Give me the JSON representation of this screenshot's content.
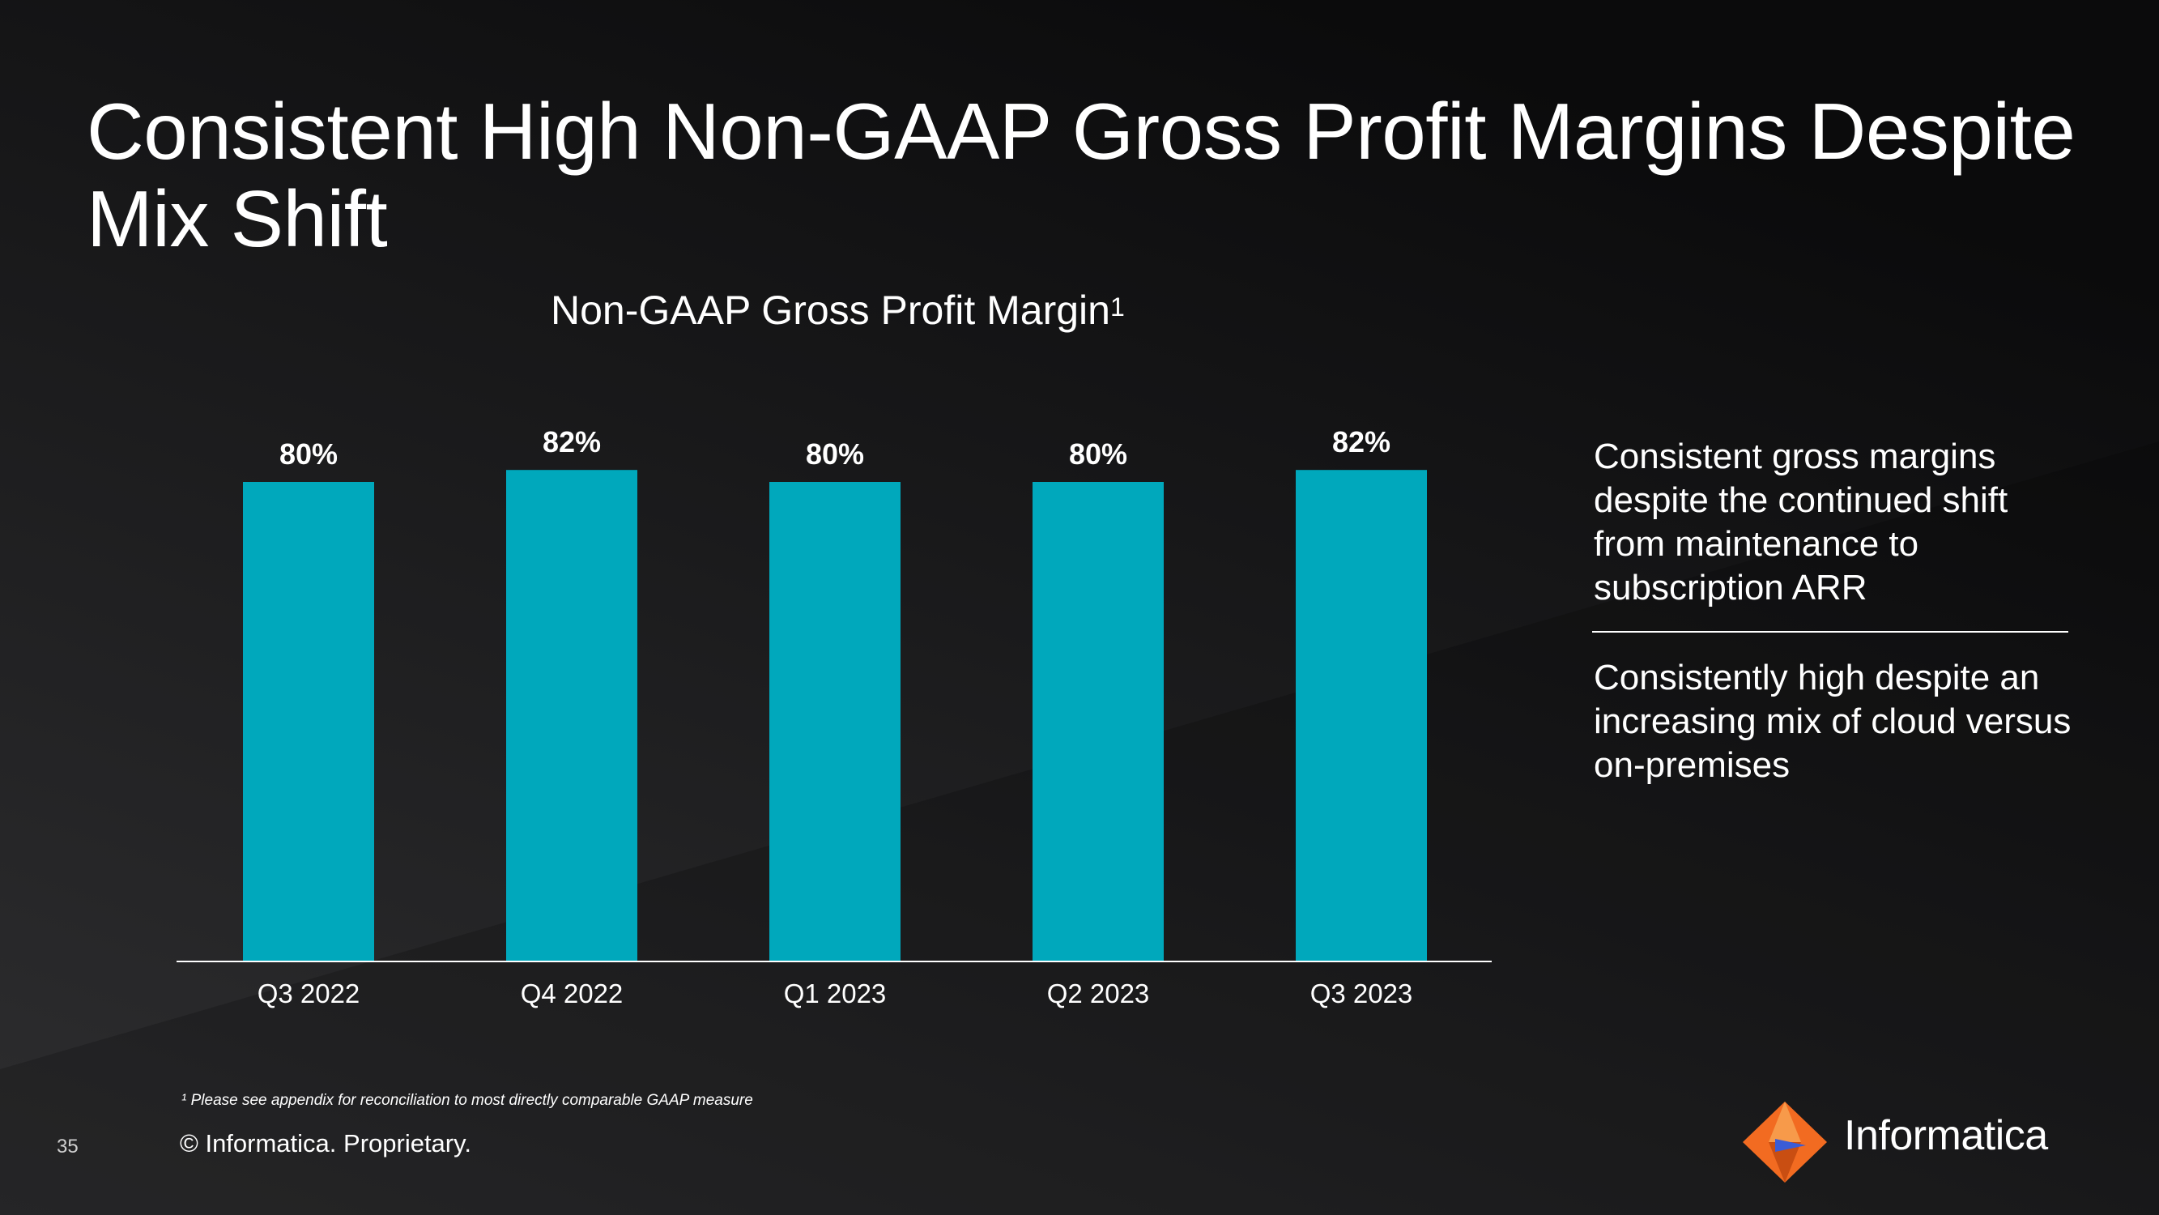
{
  "slide": {
    "title": "Consistent High Non-GAAP Gross Profit Margins Despite Mix Shift",
    "chart_title": "Non-GAAP Gross Profit Margin",
    "chart_title_superscript": "1",
    "side_points": [
      "Consistent gross margins despite the continued shift from maintenance to subscription ARR",
      "Consistently high despite an increasing mix of cloud versus on-premises"
    ],
    "footnote": "¹ Please see appendix for reconciliation to most directly comparable GAAP measure",
    "page_number": "35",
    "copyright": "© Informatica. Proprietary.",
    "brand": "Informatica"
  },
  "colors": {
    "bar": "#00A8BC",
    "background": "#1b1b1c",
    "text": "#ffffff",
    "logo_orange": "#F26B21",
    "logo_blue": "#3A5CD6"
  },
  "chart_data": {
    "type": "bar",
    "title": "Non-GAAP Gross Profit Margin",
    "categories": [
      "Q3 2022",
      "Q4 2022",
      "Q1 2023",
      "Q2 2023",
      "Q3 2023"
    ],
    "values": [
      80,
      82,
      80,
      80,
      82
    ],
    "data_labels": [
      "80%",
      "82%",
      "80%",
      "80%",
      "82%"
    ],
    "unit": "%",
    "grid": false,
    "legend": "none"
  }
}
